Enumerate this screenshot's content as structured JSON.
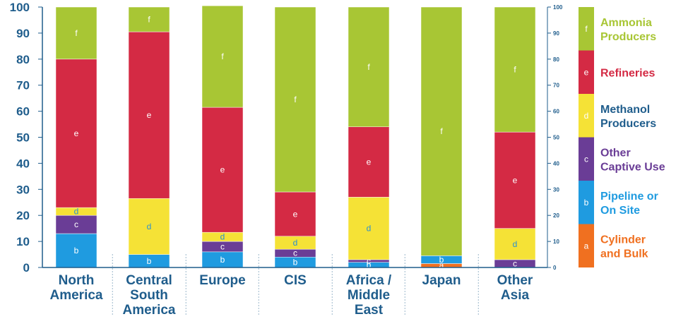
{
  "chart_data": {
    "type": "bar",
    "stacked": true,
    "categories": [
      [
        "North",
        "America"
      ],
      [
        "Central",
        "South",
        "America"
      ],
      [
        "Europe"
      ],
      [
        "CIS"
      ],
      [
        "Africa /",
        "Middle",
        "East"
      ],
      [
        "Japan"
      ],
      [
        "Other",
        "Asia"
      ]
    ],
    "series": [
      {
        "key": "a",
        "name": [
          "Cylinder",
          "and Bulk"
        ],
        "color": "#f07020",
        "label_color": "#f07020",
        "values": [
          0,
          0,
          0,
          0,
          0,
          1.5,
          0
        ]
      },
      {
        "key": "b",
        "name": [
          "Pipeline or",
          "On Site"
        ],
        "color": "#1f9be0",
        "label_color": "#1f9be0",
        "values": [
          13,
          5,
          6,
          4,
          2,
          3,
          0
        ]
      },
      {
        "key": "c",
        "name": [
          "Other",
          "Captive Use"
        ],
        "color": "#6a3d96",
        "label_color": "#6a3d96",
        "values": [
          7,
          0,
          4,
          3,
          1,
          0,
          3
        ]
      },
      {
        "key": "d",
        "name": [
          "Methanol",
          "Producers"
        ],
        "color": "#f5e236",
        "label_color": "#1f5d8c",
        "values": [
          3,
          21.5,
          3.5,
          5,
          24,
          0,
          12
        ]
      },
      {
        "key": "e",
        "name": [
          "Refineries"
        ],
        "color": "#d42a44",
        "label_color": "#d42a44",
        "values": [
          57,
          64,
          48,
          17,
          27,
          0,
          37
        ]
      },
      {
        "key": "f",
        "name": [
          "Ammonia",
          "Producers"
        ],
        "color": "#a8c634",
        "label_color": "#a8c634",
        "values": [
          20,
          9.5,
          39,
          71,
          46,
          95.5,
          48
        ]
      }
    ],
    "ylim": [
      0,
      100
    ],
    "yticks_left": [
      0,
      10,
      20,
      30,
      40,
      50,
      60,
      70,
      80,
      90,
      100
    ],
    "yticks_right": [
      0,
      10,
      20,
      30,
      40,
      50,
      60,
      70,
      80,
      90,
      100
    ],
    "title": "",
    "xlabel": "",
    "ylabel": "",
    "legend_position": "right",
    "grid": false
  }
}
